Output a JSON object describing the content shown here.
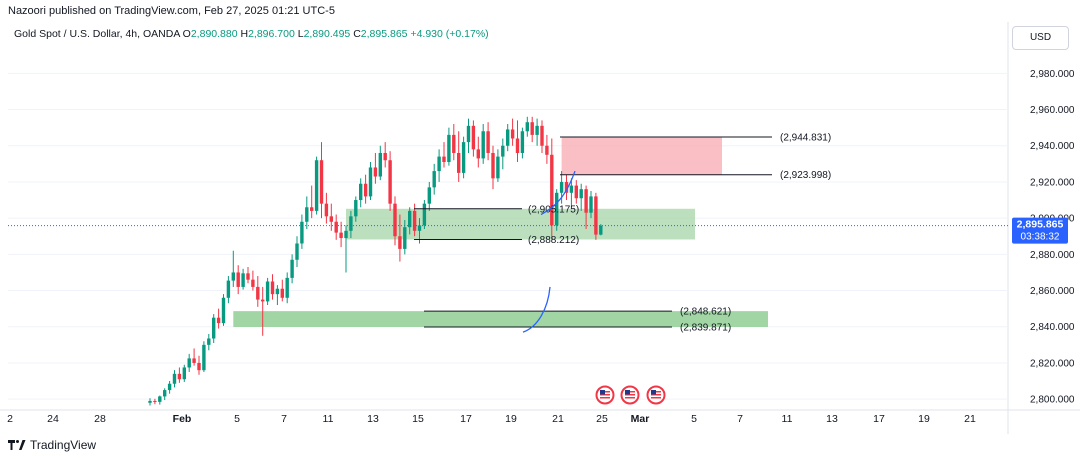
{
  "caption": "Nazoori published on TradingView.com, Feb 27, 2025 01:21 UTC-5",
  "symbol": {
    "name": "Gold Spot / U.S. Dollar, 4h, OANDA",
    "o_label": "O",
    "o_value": "2,890.880",
    "h_label": "H",
    "h_value": "2,896.700",
    "l_label": "L",
    "l_value": "2,890.495",
    "c_label": "C",
    "c_value": "2,895.865",
    "change": "+4.930 (+0.17%)"
  },
  "currency": "USD",
  "footer": {
    "brand": "TradingView",
    "logo_icon": "tradingview-logo-icon"
  },
  "price_label": {
    "value": "2,895.865",
    "countdown": "03:38:32"
  },
  "chart_data": {
    "type": "candlestick",
    "y_axis": {
      "ticks": [
        2800,
        2820,
        2840,
        2860,
        2880,
        2900,
        2920,
        2940,
        2960,
        2980
      ],
      "tick_labels": [
        "2,800.000",
        "2,820.000",
        "2,840.000",
        "2,860.000",
        "2,880.000",
        "2,900.000",
        "2,920.000",
        "2,940.000",
        "2,960.000",
        "2,980.000"
      ],
      "ylim": [
        2794,
        2994
      ]
    },
    "x_axis": {
      "tick_labels": [
        "2",
        "24",
        "28",
        "Feb",
        "5",
        "7",
        "11",
        "13",
        "15",
        "17",
        "19",
        "21",
        "25",
        "Mar",
        "5",
        "7",
        "11",
        "13",
        "17",
        "19",
        "21"
      ],
      "bold_labels": [
        "Feb",
        "Mar"
      ]
    },
    "last_price": 2895.865,
    "up_color": "#089981",
    "down_color": "#f23645",
    "annotation_color": "#131722",
    "candles": [
      {
        "o": 2798.0,
        "h": 2800.5,
        "l": 2796.5,
        "c": 2799.0
      },
      {
        "o": 2799.0,
        "h": 2800.2,
        "l": 2797.2,
        "c": 2798.5
      },
      {
        "o": 2798.5,
        "h": 2802.0,
        "l": 2797.0,
        "c": 2801.5
      },
      {
        "o": 2801.5,
        "h": 2806.0,
        "l": 2799.5,
        "c": 2805.0
      },
      {
        "o": 2805.0,
        "h": 2810.0,
        "l": 2803.0,
        "c": 2808.5
      },
      {
        "o": 2808.5,
        "h": 2816.0,
        "l": 2806.5,
        "c": 2814.0
      },
      {
        "o": 2814.0,
        "h": 2817.5,
        "l": 2809.0,
        "c": 2811.0
      },
      {
        "o": 2811.0,
        "h": 2819.0,
        "l": 2809.5,
        "c": 2817.5
      },
      {
        "o": 2817.5,
        "h": 2825.0,
        "l": 2815.0,
        "c": 2822.5
      },
      {
        "o": 2822.5,
        "h": 2828.0,
        "l": 2818.5,
        "c": 2820.0
      },
      {
        "o": 2820.0,
        "h": 2824.0,
        "l": 2813.5,
        "c": 2816.0
      },
      {
        "o": 2816.0,
        "h": 2832.0,
        "l": 2815.0,
        "c": 2830.0
      },
      {
        "o": 2830.0,
        "h": 2836.0,
        "l": 2827.0,
        "c": 2833.5
      },
      {
        "o": 2833.5,
        "h": 2847.0,
        "l": 2831.0,
        "c": 2845.0
      },
      {
        "o": 2845.0,
        "h": 2850.0,
        "l": 2839.0,
        "c": 2842.0
      },
      {
        "o": 2842.0,
        "h": 2858.0,
        "l": 2840.5,
        "c": 2856.0
      },
      {
        "o": 2856.0,
        "h": 2868.0,
        "l": 2853.0,
        "c": 2865.5
      },
      {
        "o": 2865.5,
        "h": 2882.0,
        "l": 2862.0,
        "c": 2870.0
      },
      {
        "o": 2870.0,
        "h": 2874.0,
        "l": 2858.0,
        "c": 2862.0
      },
      {
        "o": 2862.0,
        "h": 2872.0,
        "l": 2860.5,
        "c": 2869.5
      },
      {
        "o": 2869.5,
        "h": 2873.0,
        "l": 2864.0,
        "c": 2866.0
      },
      {
        "o": 2866.0,
        "h": 2871.0,
        "l": 2860.0,
        "c": 2862.0
      },
      {
        "o": 2862.0,
        "h": 2868.0,
        "l": 2851.0,
        "c": 2855.0
      },
      {
        "o": 2855.0,
        "h": 2862.0,
        "l": 2835.0,
        "c": 2854.0
      },
      {
        "o": 2854.0,
        "h": 2867.0,
        "l": 2852.0,
        "c": 2865.0
      },
      {
        "o": 2865.0,
        "h": 2869.0,
        "l": 2855.0,
        "c": 2858.0
      },
      {
        "o": 2858.0,
        "h": 2863.0,
        "l": 2852.0,
        "c": 2861.0
      },
      {
        "o": 2861.0,
        "h": 2866.0,
        "l": 2854.0,
        "c": 2856.0
      },
      {
        "o": 2856.0,
        "h": 2870.0,
        "l": 2853.0,
        "c": 2867.0
      },
      {
        "o": 2867.0,
        "h": 2880.0,
        "l": 2864.0,
        "c": 2877.0
      },
      {
        "o": 2877.0,
        "h": 2890.0,
        "l": 2873.0,
        "c": 2886.0
      },
      {
        "o": 2886.0,
        "h": 2902.0,
        "l": 2883.0,
        "c": 2898.0
      },
      {
        "o": 2898.0,
        "h": 2912.0,
        "l": 2894.0,
        "c": 2906.0
      },
      {
        "o": 2906.0,
        "h": 2918.0,
        "l": 2900.0,
        "c": 2904.0
      },
      {
        "o": 2904.0,
        "h": 2934.0,
        "l": 2902.0,
        "c": 2932.0
      },
      {
        "o": 2932.0,
        "h": 2942.0,
        "l": 2900.0,
        "c": 2908.0
      },
      {
        "o": 2908.0,
        "h": 2914.0,
        "l": 2897.0,
        "c": 2901.0
      },
      {
        "o": 2901.0,
        "h": 2908.0,
        "l": 2893.0,
        "c": 2898.0
      },
      {
        "o": 2898.0,
        "h": 2902.0,
        "l": 2888.0,
        "c": 2892.0
      },
      {
        "o": 2892.0,
        "h": 2898.0,
        "l": 2884.0,
        "c": 2889.0
      },
      {
        "o": 2889.0,
        "h": 2896.0,
        "l": 2870.0,
        "c": 2893.0
      },
      {
        "o": 2893.0,
        "h": 2904.0,
        "l": 2889.0,
        "c": 2901.0
      },
      {
        "o": 2901.0,
        "h": 2912.0,
        "l": 2898.0,
        "c": 2910.0
      },
      {
        "o": 2910.0,
        "h": 2922.0,
        "l": 2906.0,
        "c": 2919.0
      },
      {
        "o": 2919.0,
        "h": 2924.0,
        "l": 2908.0,
        "c": 2912.0
      },
      {
        "o": 2912.0,
        "h": 2931.0,
        "l": 2910.0,
        "c": 2928.0
      },
      {
        "o": 2928.0,
        "h": 2936.0,
        "l": 2919.0,
        "c": 2923.0
      },
      {
        "o": 2923.0,
        "h": 2940.0,
        "l": 2921.0,
        "c": 2936.0
      },
      {
        "o": 2936.0,
        "h": 2942.0,
        "l": 2928.0,
        "c": 2932.0
      },
      {
        "o": 2932.0,
        "h": 2937.0,
        "l": 2904.0,
        "c": 2908.0
      },
      {
        "o": 2908.0,
        "h": 2912.0,
        "l": 2885.0,
        "c": 2890.0
      },
      {
        "o": 2890.0,
        "h": 2902.0,
        "l": 2876.0,
        "c": 2883.0
      },
      {
        "o": 2883.0,
        "h": 2899.0,
        "l": 2880.0,
        "c": 2895.0
      },
      {
        "o": 2895.0,
        "h": 2906.0,
        "l": 2891.0,
        "c": 2904.0
      },
      {
        "o": 2904.0,
        "h": 2908.0,
        "l": 2890.0,
        "c": 2893.0
      },
      {
        "o": 2893.0,
        "h": 2900.0,
        "l": 2886.0,
        "c": 2896.0
      },
      {
        "o": 2896.0,
        "h": 2910.0,
        "l": 2894.0,
        "c": 2908.0
      },
      {
        "o": 2908.0,
        "h": 2920.0,
        "l": 2904.0,
        "c": 2917.0
      },
      {
        "o": 2917.0,
        "h": 2930.0,
        "l": 2913.0,
        "c": 2926.0
      },
      {
        "o": 2926.0,
        "h": 2938.0,
        "l": 2920.0,
        "c": 2934.0
      },
      {
        "o": 2934.0,
        "h": 2942.0,
        "l": 2928.0,
        "c": 2931.0
      },
      {
        "o": 2931.0,
        "h": 2950.0,
        "l": 2929.0,
        "c": 2946.0
      },
      {
        "o": 2946.0,
        "h": 2952.0,
        "l": 2932.0,
        "c": 2936.0
      },
      {
        "o": 2936.0,
        "h": 2948.0,
        "l": 2920.0,
        "c": 2925.0
      },
      {
        "o": 2925.0,
        "h": 2945.0,
        "l": 2922.0,
        "c": 2942.0
      },
      {
        "o": 2942.0,
        "h": 2955.0,
        "l": 2936.0,
        "c": 2951.0
      },
      {
        "o": 2951.0,
        "h": 2954.0,
        "l": 2934.0,
        "c": 2938.0
      },
      {
        "o": 2938.0,
        "h": 2945.0,
        "l": 2928.0,
        "c": 2933.0
      },
      {
        "o": 2933.0,
        "h": 2952.0,
        "l": 2930.0,
        "c": 2948.0
      },
      {
        "o": 2948.0,
        "h": 2953.0,
        "l": 2932.0,
        "c": 2936.0
      },
      {
        "o": 2936.0,
        "h": 2940.0,
        "l": 2916.0,
        "c": 2922.0
      },
      {
        "o": 2922.0,
        "h": 2938.0,
        "l": 2920.0,
        "c": 2934.0
      },
      {
        "o": 2934.0,
        "h": 2944.0,
        "l": 2927.0,
        "c": 2940.0
      },
      {
        "o": 2940.0,
        "h": 2952.0,
        "l": 2937.0,
        "c": 2949.0
      },
      {
        "o": 2949.0,
        "h": 2955.0,
        "l": 2940.0,
        "c": 2944.0
      },
      {
        "o": 2944.0,
        "h": 2954.0,
        "l": 2931.0,
        "c": 2936.0
      },
      {
        "o": 2936.0,
        "h": 2950.0,
        "l": 2933.0,
        "c": 2948.0
      },
      {
        "o": 2948.0,
        "h": 2956.0,
        "l": 2945.0,
        "c": 2953.0
      },
      {
        "o": 2953.0,
        "h": 2956.0,
        "l": 2942.0,
        "c": 2946.0
      },
      {
        "o": 2946.0,
        "h": 2955.0,
        "l": 2940.0,
        "c": 2951.0
      },
      {
        "o": 2951.0,
        "h": 2954.0,
        "l": 2936.0,
        "c": 2940.0
      },
      {
        "o": 2940.0,
        "h": 2946.0,
        "l": 2930.0,
        "c": 2935.0
      },
      {
        "o": 2935.0,
        "h": 2944.0,
        "l": 2888.0,
        "c": 2896.0
      },
      {
        "o": 2896.0,
        "h": 2916.0,
        "l": 2893.0,
        "c": 2914.0
      },
      {
        "o": 2914.0,
        "h": 2926.0,
        "l": 2908.0,
        "c": 2920.0
      },
      {
        "o": 2920.0,
        "h": 2924.0,
        "l": 2910.0,
        "c": 2914.0
      },
      {
        "o": 2914.0,
        "h": 2922.0,
        "l": 2906.0,
        "c": 2918.0
      },
      {
        "o": 2918.0,
        "h": 2921.0,
        "l": 2908.0,
        "c": 2911.0
      },
      {
        "o": 2911.0,
        "h": 2919.0,
        "l": 2904.0,
        "c": 2916.0
      },
      {
        "o": 2916.0,
        "h": 2918.0,
        "l": 2894.0,
        "c": 2903.0
      },
      {
        "o": 2903.0,
        "h": 2915.0,
        "l": 2900.0,
        "c": 2912.0
      },
      {
        "o": 2912.0,
        "h": 2914.0,
        "l": 2888.0,
        "c": 2890.9
      },
      {
        "o": 2890.88,
        "h": 2896.7,
        "l": 2890.495,
        "c": 2895.865
      }
    ],
    "zones": [
      {
        "name": "supply-zone",
        "color": "#f7a9b2",
        "top": 2944.831,
        "bottom": 2923.998,
        "from_index": 84,
        "to": 722
      },
      {
        "name": "demand-zone-upper",
        "color": "#a5d6a7",
        "top": 2905.175,
        "bottom": 2888.212,
        "from_index": 40,
        "to": 695
      },
      {
        "name": "demand-zone-lower",
        "color": "#81c784",
        "top": 2848.621,
        "bottom": 2839.871,
        "from_index": 17,
        "to": 768
      }
    ],
    "levels": [
      {
        "value": 2944.831,
        "label": "(2,944.831)"
      },
      {
        "value": 2923.998,
        "label": "(2,923.998)"
      },
      {
        "value": 2905.175,
        "label": "(2,905.175)"
      },
      {
        "value": 2888.212,
        "label": "(2,888.212)"
      },
      {
        "value": 2848.621,
        "label": "(2,848.621)"
      },
      {
        "value": 2839.871,
        "label": "(2,839.871)"
      }
    ],
    "events": [
      "us-flag-icon",
      "us-flag-icon",
      "us-flag-icon"
    ]
  }
}
